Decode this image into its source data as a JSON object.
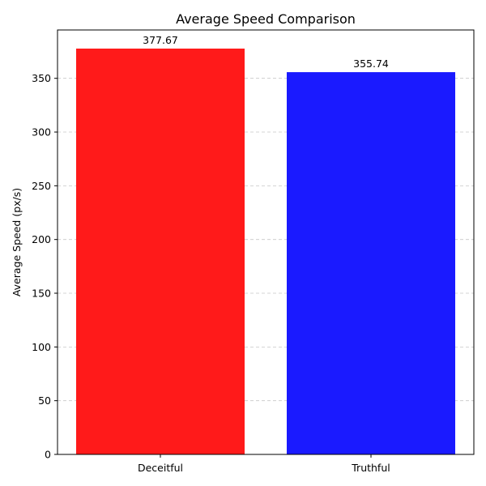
{
  "chart_data": {
    "type": "bar",
    "title": "Average Speed Comparison",
    "xlabel": "",
    "ylabel": "Average Speed (px/s)",
    "categories": [
      "Deceitful",
      "Truthful"
    ],
    "values": [
      377.67,
      355.74
    ],
    "value_labels": [
      "377.67",
      "355.74"
    ],
    "colors": [
      "#ff1a1a",
      "#1a1aff"
    ],
    "ylim": [
      0,
      395
    ],
    "yticks": [
      0,
      50,
      100,
      150,
      200,
      250,
      300,
      350
    ],
    "grid": "y-dashed",
    "legend": "none"
  }
}
